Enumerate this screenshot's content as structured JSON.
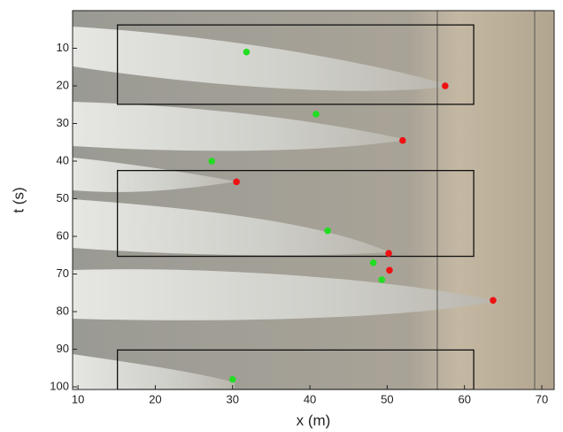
{
  "chart_data": {
    "type": "scatter",
    "xlabel": "x (m)",
    "ylabel": "t (s)",
    "xlim": [
      9.3,
      71.6
    ],
    "xticks": [
      10,
      20,
      30,
      40,
      50,
      60,
      70
    ],
    "ylim": [
      0,
      100.7
    ],
    "yticks": [
      10,
      20,
      30,
      40,
      50,
      60,
      70,
      80,
      90,
      100
    ],
    "y_inverted": true,
    "series": [
      {
        "color": "#22dd22",
        "x": [
          31.8,
          40.8,
          27.3,
          42.3,
          48.2,
          49.3,
          30.0
        ],
        "values": [
          11,
          27.5,
          40,
          58.5,
          67,
          71.5,
          98
        ]
      },
      {
        "color": "#ee1111",
        "x": [
          57.5,
          52.0,
          30.5,
          50.2,
          50.3,
          63.7
        ],
        "values": [
          20,
          34.5,
          45.5,
          64.5,
          69,
          77
        ]
      }
    ],
    "rectangles": [
      {
        "x": [
          15.1,
          61.2
        ],
        "y": [
          3.8,
          24.9
        ]
      },
      {
        "x": [
          15.1,
          61.2
        ],
        "y": [
          42.5,
          65.3
        ]
      },
      {
        "x": [
          15.1,
          61.2
        ],
        "y": [
          90.2,
          100.7
        ]
      }
    ]
  }
}
